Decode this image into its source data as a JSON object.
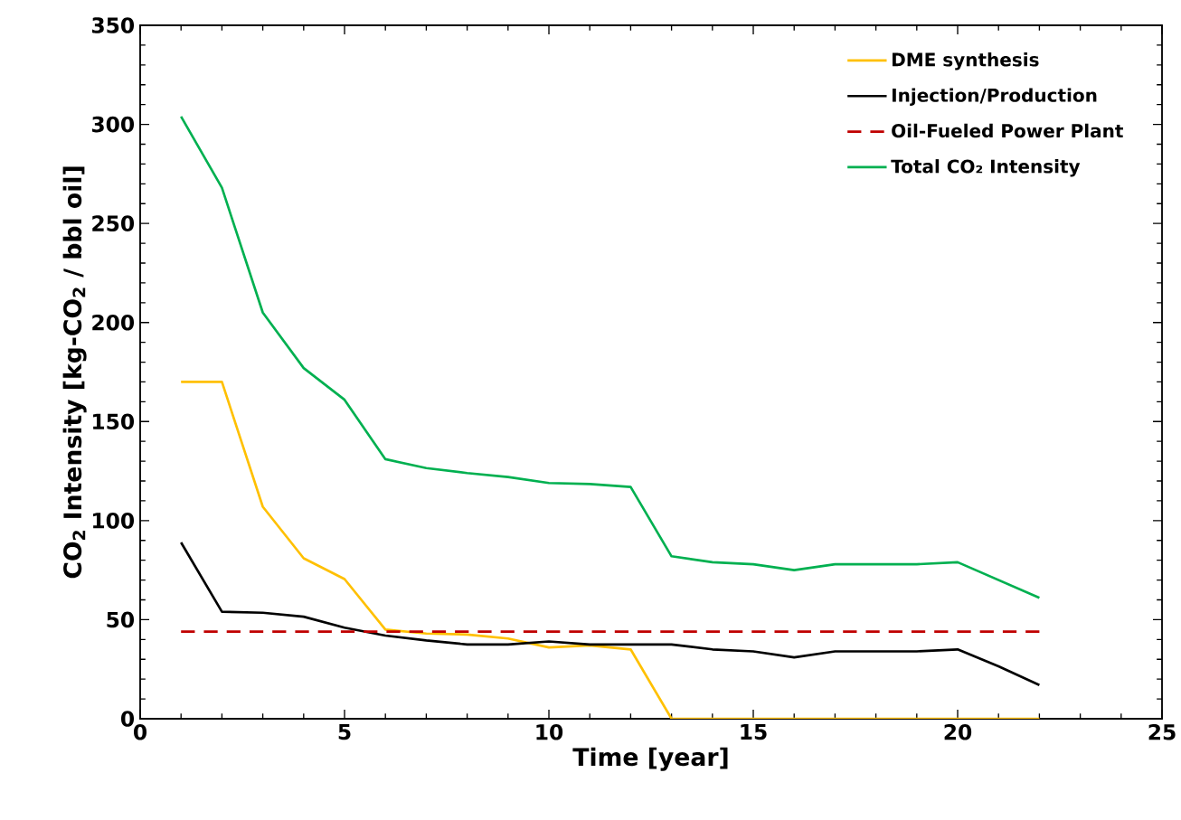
{
  "chart_data": {
    "type": "line",
    "xlabel": "Time [year]",
    "ylabel": "CO$_{2}$ Intensity [kg-CO$_{2}$ / bbl oil]",
    "x": [
      1,
      2,
      3,
      4,
      5,
      6,
      7,
      8,
      9,
      10,
      11,
      12,
      13,
      14,
      15,
      16,
      17,
      18,
      19,
      20,
      21,
      22
    ],
    "series": [
      {
        "name": "DME synthesis",
        "color": "#ffc000",
        "values": [
          170,
          170,
          107,
          81,
          70.5,
          45,
          43,
          42.5,
          40.5,
          36,
          37,
          35,
          0,
          0,
          0,
          0,
          0,
          0,
          0,
          0,
          0,
          0
        ]
      },
      {
        "name": "Injection/Production",
        "color": "#000000",
        "values": [
          89,
          54,
          53.5,
          51.5,
          46,
          42,
          39.5,
          37.5,
          37.5,
          39,
          37.5,
          37.5,
          37.5,
          35,
          34,
          31,
          34,
          34,
          34,
          35,
          26.5,
          17
        ]
      },
      {
        "name": "Oil-Fueled Power Plant",
        "color": "#c00000",
        "line_style": "dashed",
        "x": [
          1,
          22
        ],
        "values": [
          44,
          44
        ]
      },
      {
        "name": "Total CO₂ Intensity",
        "color": "#00b050",
        "values": [
          304,
          268,
          205,
          177,
          161,
          131,
          126.5,
          124,
          122,
          119,
          118.5,
          117,
          82,
          79,
          78,
          75,
          78,
          78,
          78,
          79,
          70,
          61
        ]
      }
    ],
    "xlim": [
      0,
      25
    ],
    "xticks": [
      0,
      5,
      10,
      15,
      20,
      25
    ],
    "ylim": [
      0,
      350
    ],
    "yticks": [
      0,
      50,
      100,
      150,
      200,
      250,
      300,
      350
    ],
    "legend": "top right"
  }
}
